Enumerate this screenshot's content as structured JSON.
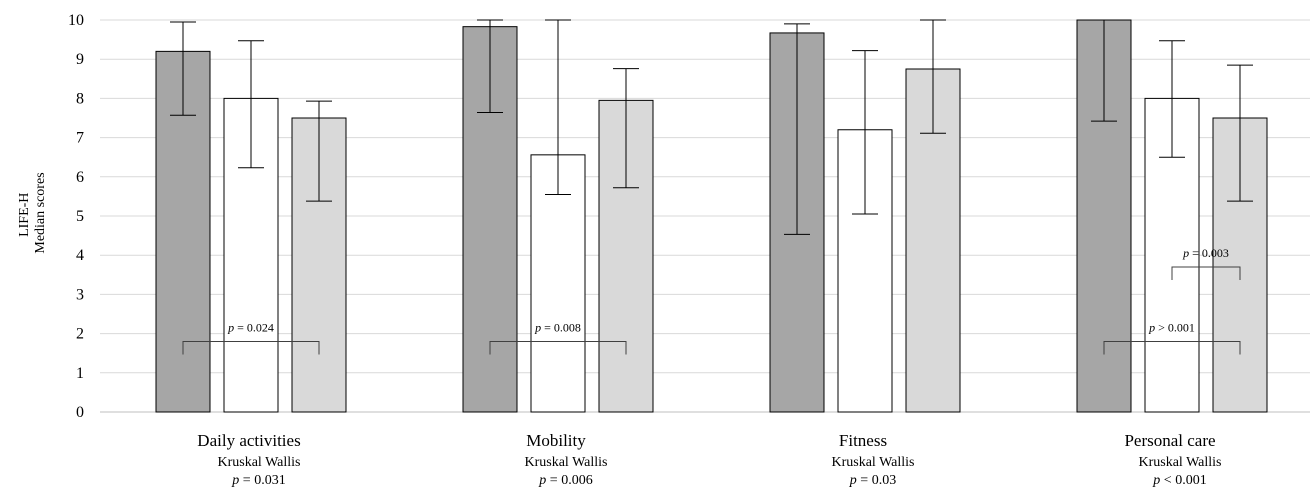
{
  "chart_data": {
    "type": "bar",
    "title": "",
    "ylabel_line1": "LIFE-H",
    "ylabel_line2": "Median scores",
    "xlabel": "",
    "ylim": [
      0,
      10
    ],
    "yticks": [
      "0",
      "1",
      "2",
      "3",
      "4",
      "5",
      "6",
      "7",
      "8",
      "9",
      "10"
    ],
    "grid": true,
    "legend": "none",
    "colors": [
      "#a6a6a6",
      "#ffffff",
      "#d9d9d9"
    ],
    "categories": [
      {
        "label": "Daily activities",
        "test": "Kruskal Wallis",
        "p_sym": "p",
        "p_rest": " = 0.031"
      },
      {
        "label": "Mobility",
        "test": "Kruskal Wallis",
        "p_sym": "p",
        "p_rest": " = 0.006"
      },
      {
        "label": "Fitness",
        "test": "Kruskal Wallis",
        "p_sym": "p",
        "p_rest": " = 0.03"
      },
      {
        "label": "Personal care",
        "test": "Kruskal Wallis",
        "p_sym": "p",
        "p_rest": " < 0.001"
      }
    ],
    "series": [
      {
        "values": [
          9.2,
          9.83,
          9.67,
          10.0
        ],
        "err_low": [
          7.57,
          7.64,
          4.53,
          7.42
        ],
        "err_high": [
          9.95,
          10.0,
          9.9,
          10.0
        ]
      },
      {
        "values": [
          8.0,
          6.56,
          7.2,
          8.0
        ],
        "err_low": [
          6.23,
          5.55,
          5.05,
          6.5
        ],
        "err_high": [
          9.47,
          10.0,
          9.22,
          9.47
        ]
      },
      {
        "values": [
          7.5,
          7.95,
          8.75,
          7.5
        ],
        "err_low": [
          5.38,
          5.72,
          7.11,
          5.38
        ],
        "err_high": [
          7.93,
          8.76,
          10.0,
          8.85
        ]
      }
    ],
    "annotations": [
      {
        "category": 0,
        "from_series": 0,
        "to_series": 2,
        "y": 1.8,
        "p_sym": "p",
        "text": " = 0.024"
      },
      {
        "category": 1,
        "from_series": 0,
        "to_series": 2,
        "y": 1.8,
        "p_sym": "p",
        "text": " = 0.008"
      },
      {
        "category": 3,
        "from_series": 0,
        "to_series": 2,
        "y": 1.8,
        "p_sym": "p",
        "text": " > 0.001"
      },
      {
        "category": 3,
        "from_series": 1,
        "to_series": 2,
        "y": 3.7,
        "p_sym": "p",
        "text": " = 0.003"
      }
    ]
  }
}
